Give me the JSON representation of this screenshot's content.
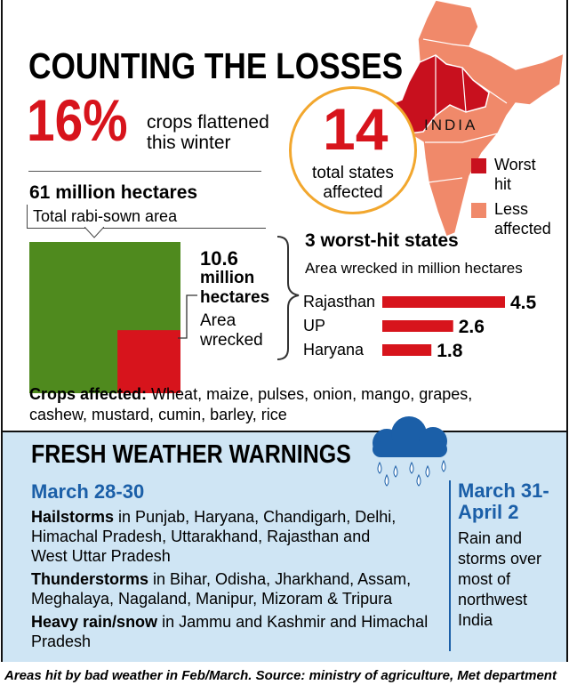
{
  "header": {
    "title": "COUNTING THE LOSSES",
    "percent": "16%",
    "percent_text": [
      "crops flattened",
      "this winter"
    ],
    "states_count": "14",
    "states_text": [
      "total states",
      "affected"
    ]
  },
  "map": {
    "label": "INDIA",
    "legend": [
      {
        "lines": [
          "Worst",
          "hit"
        ],
        "color": "#c8101e"
      },
      {
        "lines": [
          "Less",
          "affected"
        ],
        "color": "#f0896a"
      }
    ]
  },
  "area": {
    "total": {
      "value": 61,
      "unit": "million hectares",
      "label": "Total rabi-sown area",
      "color": "#4f8a1e"
    },
    "wrecked": {
      "value": 10.6,
      "unit_lines": [
        "million",
        "hectares"
      ],
      "label_lines": [
        "Area",
        "wrecked"
      ],
      "color": "#d7141c"
    }
  },
  "chart_data": {
    "type": "bar",
    "title": "3 worst-hit states",
    "subtitle": "Area wrecked in million hectares",
    "categories": [
      "Rajasthan",
      "UP",
      "Haryana"
    ],
    "values": [
      4.5,
      2.6,
      1.8
    ],
    "color": "#d7141c"
  },
  "crops": {
    "lead": "Crops affected:",
    "text": [
      "Wheat, maize, pulses, onion, mango, grapes,",
      "cashew, mustard, cumin, barley, rice"
    ]
  },
  "warnings": {
    "title": "FRESH WEATHER WARNINGS",
    "left": {
      "date": "March 28-30",
      "items": [
        {
          "lead": "Hailstorms",
          "lines": [
            " in Punjab, Haryana, Chandigarh, Delhi,",
            "Himachal Pradesh, Uttarakhand, Rajasthan and",
            "West Uttar Pradesh"
          ]
        },
        {
          "lead": "Thunderstorms",
          "lines": [
            " in Bihar, Odisha, Jharkhand, Assam,",
            "Meghalaya, Nagaland, Manipur, Mizoram & Tripura"
          ]
        },
        {
          "lead": "Heavy rain/snow",
          "lines": [
            " in Jammu and Kashmir and Himachal",
            "Pradesh"
          ]
        }
      ]
    },
    "right": {
      "date": [
        "March 31-",
        "April 2"
      ],
      "lines": [
        "Rain and",
        "storms over",
        "most of",
        "northwest",
        "India"
      ]
    }
  },
  "footer": "Areas hit by bad weather in Feb/March. Source: ministry of agriculture, Met department"
}
